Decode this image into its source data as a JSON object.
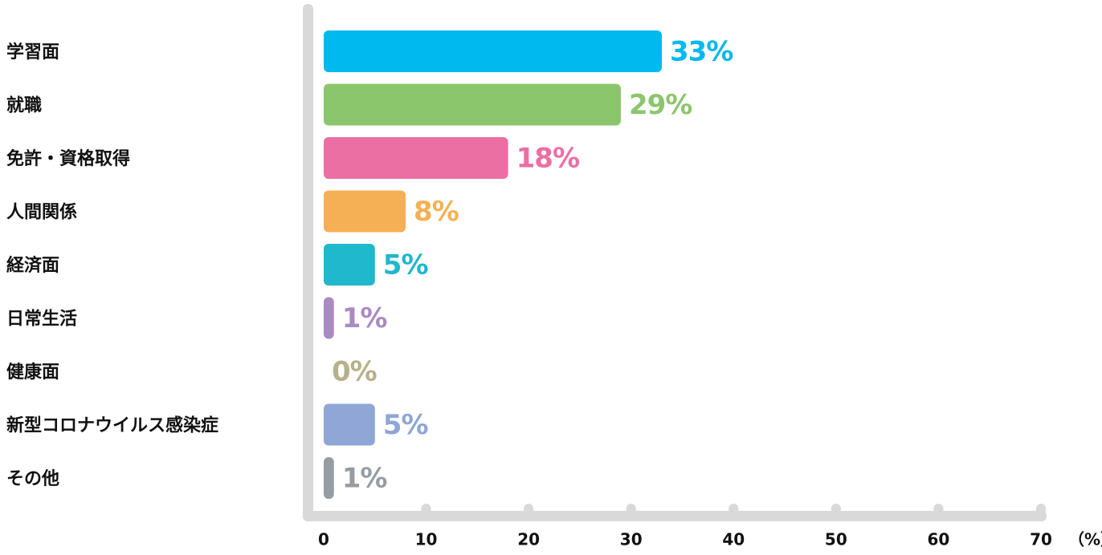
{
  "chart_data": {
    "type": "bar",
    "orientation": "horizontal",
    "categories": [
      "学習面",
      "就職",
      "免許・資格取得",
      "人間関係",
      "経済面",
      "日常生活",
      "健康面",
      "新型コロナウイルス感染症",
      "その他"
    ],
    "values": [
      33,
      29,
      18,
      8,
      5,
      1,
      0,
      5,
      1
    ],
    "value_labels": [
      "33%",
      "29%",
      "18%",
      "8%",
      "5%",
      "1%",
      "0%",
      "5%",
      "1%"
    ],
    "colors": [
      "#00b9ef",
      "#8cc66c",
      "#ec6fa4",
      "#f5b055",
      "#1fb8cc",
      "#a98bc2",
      "#b8b08a",
      "#8fa6d6",
      "#959da3"
    ],
    "xlim": [
      0,
      70
    ],
    "xticks": [
      0,
      10,
      20,
      30,
      40,
      50,
      60,
      70
    ],
    "x_unit_label": "（%）"
  }
}
